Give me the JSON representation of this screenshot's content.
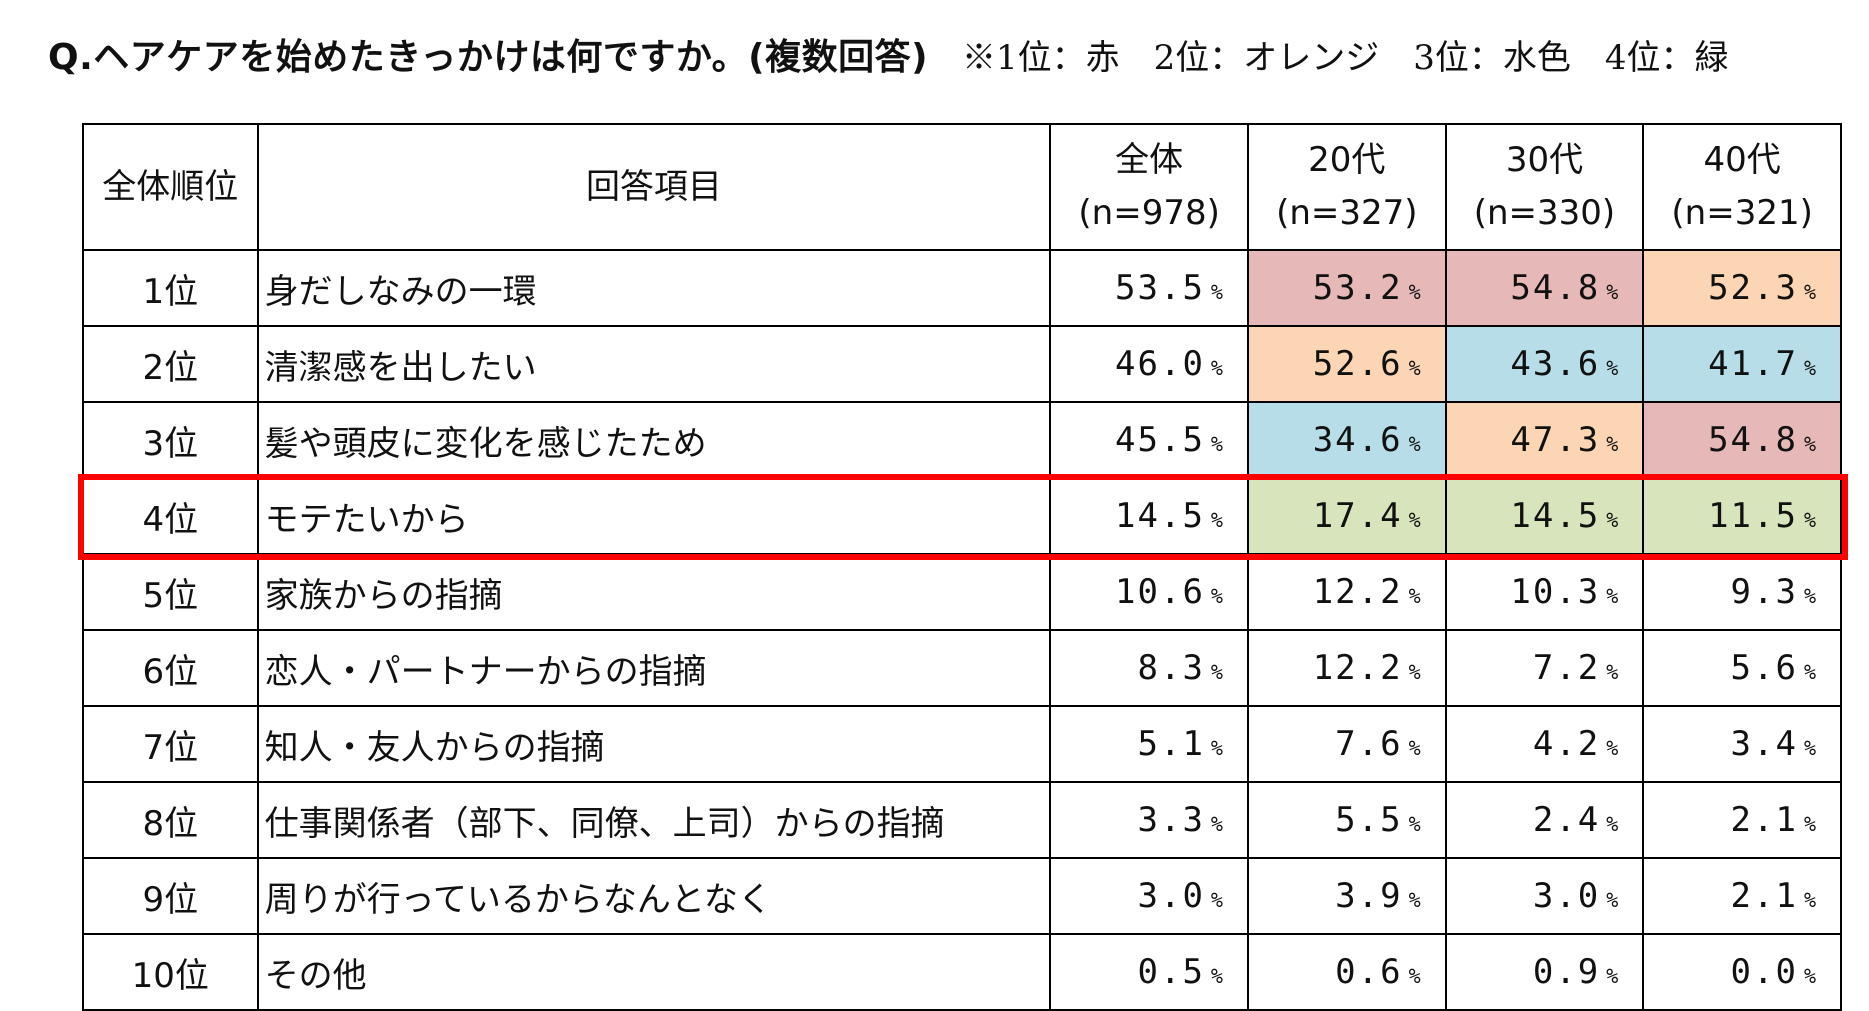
{
  "title": "Q.ヘアケアを始めたきっかけは何ですか。(複数回答)",
  "legend_note": "※1位：赤　2位：オレンジ　3位：水色　4位：緑",
  "headers": {
    "rank": "全体順位",
    "item": "回答項目",
    "groups": [
      {
        "label": "全体",
        "n": "(n=978)"
      },
      {
        "label": "20代",
        "n": "(n=327)"
      },
      {
        "label": "30代",
        "n": "(n=330)"
      },
      {
        "label": "40代",
        "n": "(n=321)"
      }
    ]
  },
  "percent_symbol": "%",
  "highlight_colors": {
    "rank1": "#e6b8b7",
    "rank2": "#fcd5b4",
    "rank3": "#b7dee8",
    "rank4": "#d8e4bc",
    "highlight_border": "#ff0000"
  },
  "highlighted_row": "4位",
  "chart_data": {
    "type": "table",
    "columns": [
      "全体順位",
      "回答項目",
      "全体 (n=978)",
      "20代 (n=327)",
      "30代 (n=330)",
      "40代 (n=321)"
    ],
    "rows": [
      {
        "rank": "1位",
        "item": "身だしなみの一環",
        "values": [
          "53.5",
          "53.2",
          "54.8",
          "52.3"
        ],
        "ranks": [
          null,
          1,
          1,
          2
        ]
      },
      {
        "rank": "2位",
        "item": "清潔感を出したい",
        "values": [
          "46.0",
          "52.6",
          "43.6",
          "41.7"
        ],
        "ranks": [
          null,
          2,
          3,
          3
        ]
      },
      {
        "rank": "3位",
        "item": "髪や頭皮に変化を感じたため",
        "values": [
          "45.5",
          "34.6",
          "47.3",
          "54.8"
        ],
        "ranks": [
          null,
          3,
          2,
          1
        ]
      },
      {
        "rank": "4位",
        "item": "モテたいから",
        "values": [
          "14.5",
          "17.4",
          "14.5",
          "11.5"
        ],
        "ranks": [
          null,
          4,
          4,
          4
        ]
      },
      {
        "rank": "5位",
        "item": "家族からの指摘",
        "values": [
          "10.6",
          "12.2",
          "10.3",
          "9.3"
        ],
        "ranks": [
          null,
          null,
          null,
          null
        ]
      },
      {
        "rank": "6位",
        "item": "恋人・パートナーからの指摘",
        "values": [
          "8.3",
          "12.2",
          "7.2",
          "5.6"
        ],
        "ranks": [
          null,
          null,
          null,
          null
        ]
      },
      {
        "rank": "7位",
        "item": "知人・友人からの指摘",
        "values": [
          "5.1",
          "7.6",
          "4.2",
          "3.4"
        ],
        "ranks": [
          null,
          null,
          null,
          null
        ]
      },
      {
        "rank": "8位",
        "item": "仕事関係者（部下、同僚、上司）からの指摘",
        "values": [
          "3.3",
          "5.5",
          "2.4",
          "2.1"
        ],
        "ranks": [
          null,
          null,
          null,
          null
        ]
      },
      {
        "rank": "9位",
        "item": "周りが行っているからなんとなく",
        "values": [
          "3.0",
          "3.9",
          "3.0",
          "2.1"
        ],
        "ranks": [
          null,
          null,
          null,
          null
        ]
      },
      {
        "rank": "10位",
        "item": "その他",
        "values": [
          "0.5",
          "0.6",
          "0.9",
          "0.0"
        ],
        "ranks": [
          null,
          null,
          null,
          null
        ]
      }
    ]
  }
}
